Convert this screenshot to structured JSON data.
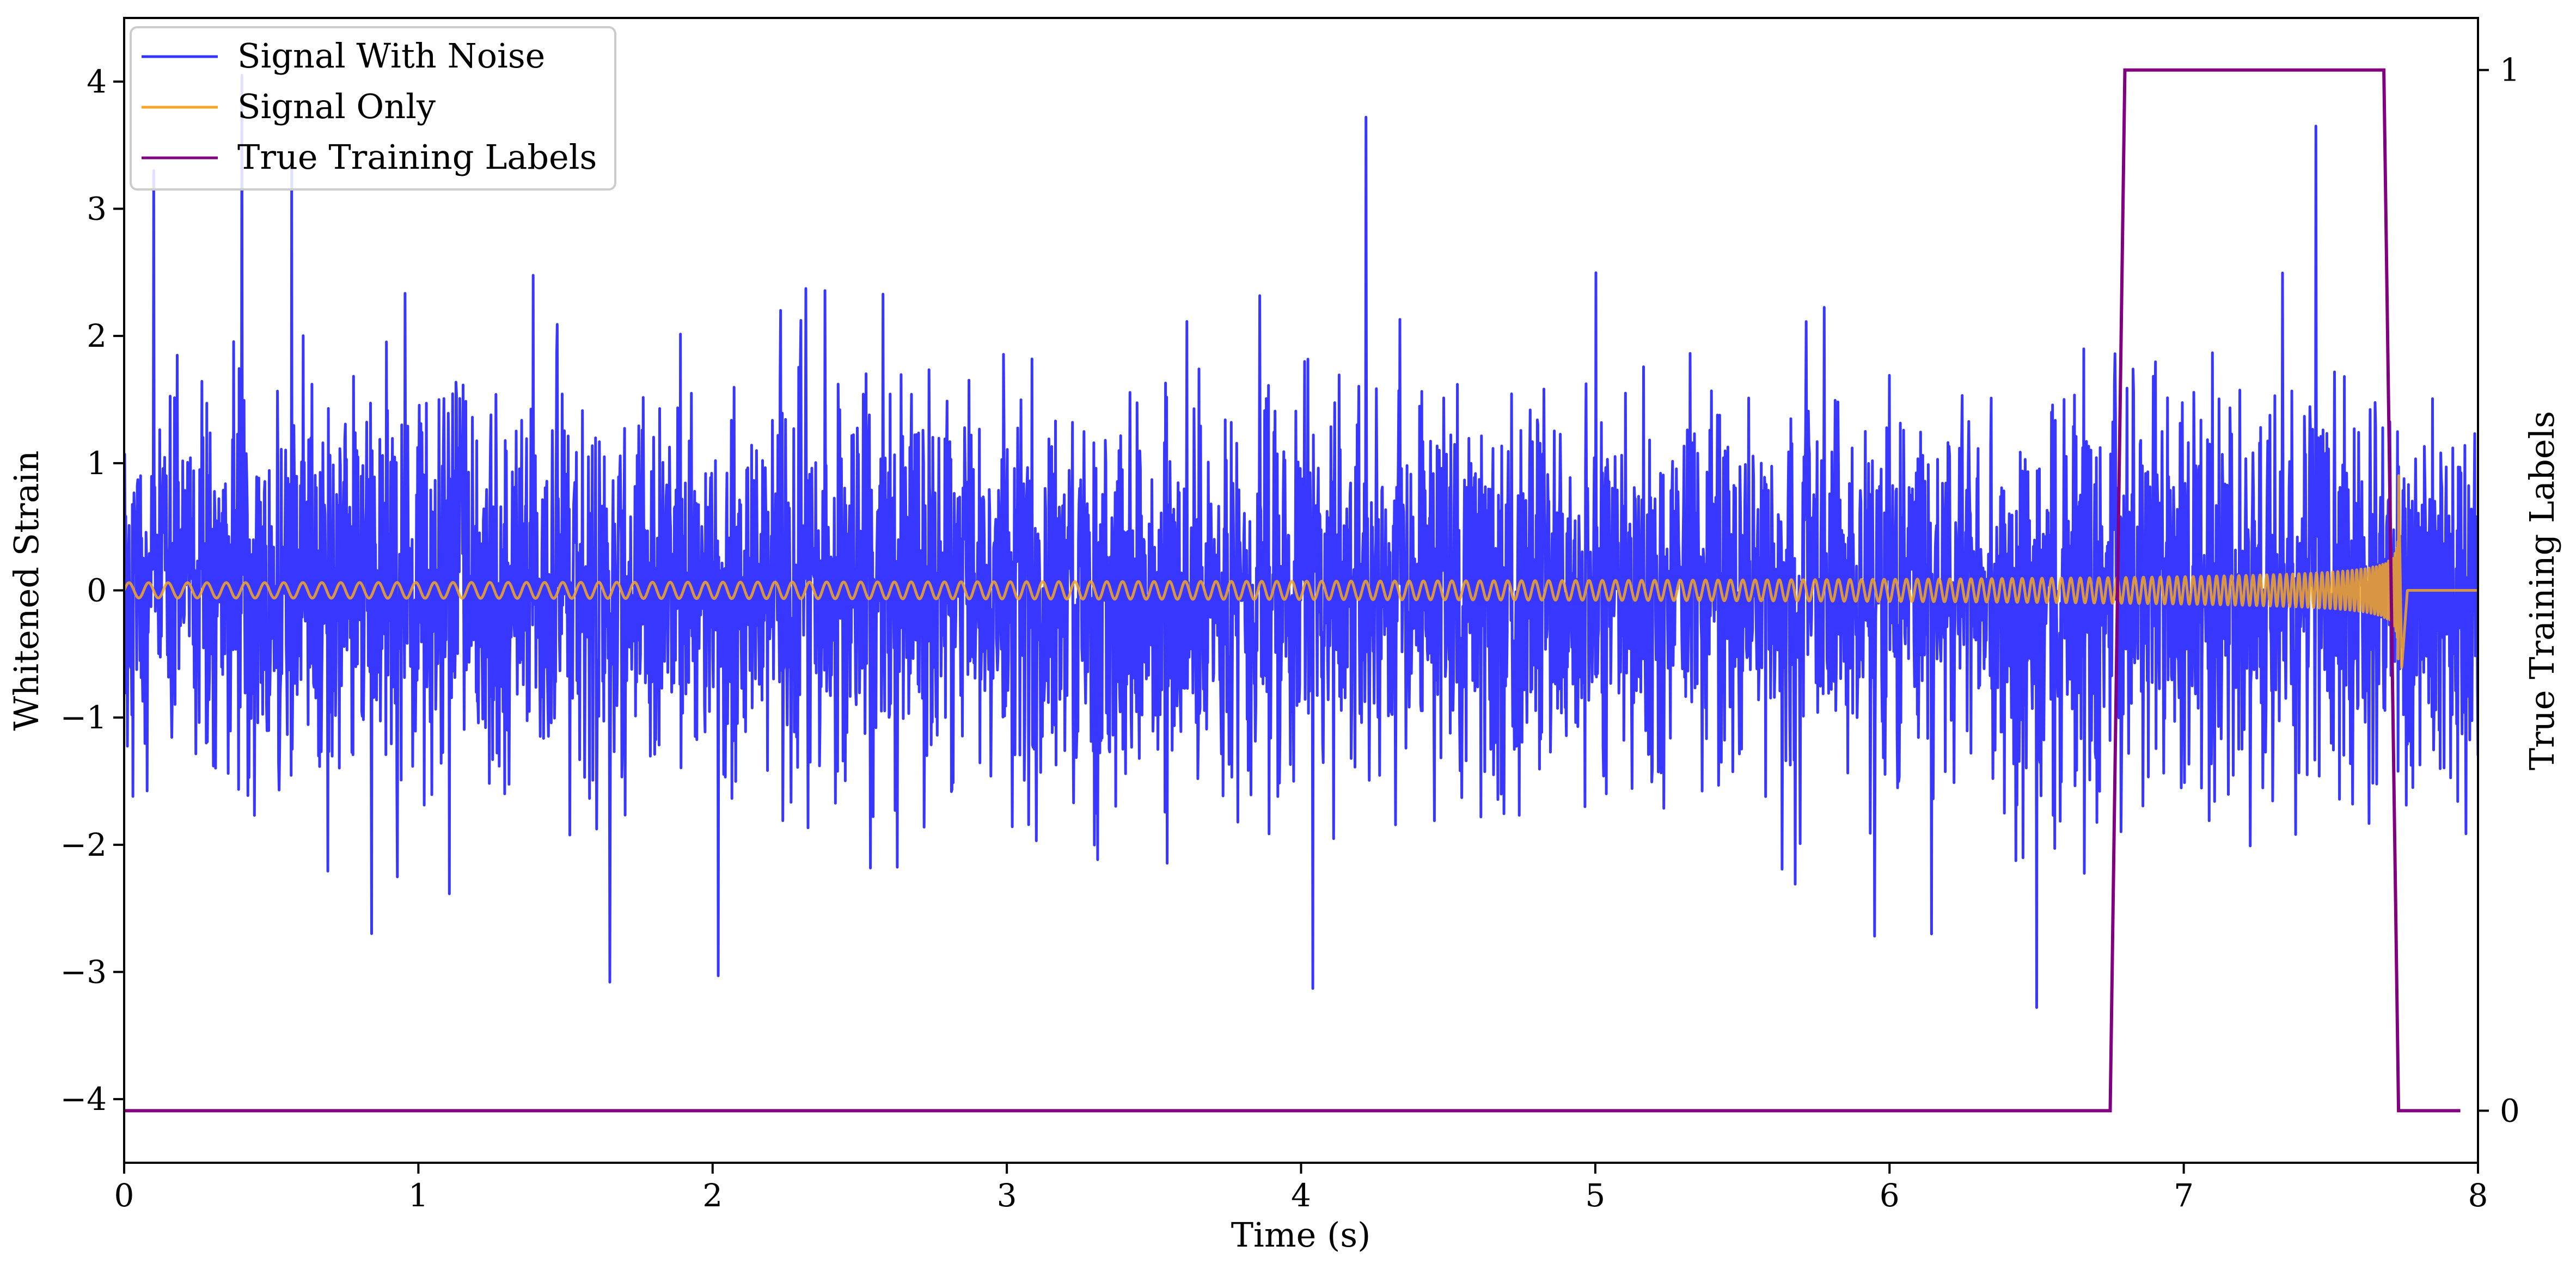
{
  "chart_data": {
    "type": "line",
    "xlabel": "Time (s)",
    "ylabel": "Whitened Strain",
    "y2label": "True Training Labels",
    "xlim": [
      0,
      8
    ],
    "ylim": [
      -4.5,
      4.5
    ],
    "y2lim": [
      -0.05,
      1.05
    ],
    "xticks": [
      0,
      1,
      2,
      3,
      4,
      5,
      6,
      7,
      8
    ],
    "xtick_labels": [
      "0",
      "1",
      "2",
      "3",
      "4",
      "5",
      "6",
      "7",
      "8"
    ],
    "yticks": [
      -4,
      -3,
      -2,
      -1,
      0,
      1,
      2,
      3,
      4
    ],
    "ytick_labels": [
      "−4",
      "−3",
      "−2",
      "−1",
      "0",
      "1",
      "2",
      "3",
      "4"
    ],
    "y2ticks": [
      0,
      1
    ],
    "y2tick_labels": [
      "0",
      "1"
    ],
    "grid": false,
    "legend_position": "top-left",
    "series": [
      {
        "name": "Signal With Noise",
        "color": "#3333ff",
        "axis": "left",
        "kind": "noise",
        "x_range": [
          0,
          8
        ],
        "approx_std": 0.75,
        "peaks": [
          [
            0.1,
            3.3
          ],
          [
            0.4,
            4.05
          ],
          [
            0.57,
            3.4
          ],
          [
            4.22,
            3.72
          ],
          [
            7.45,
            3.65
          ],
          [
            1.65,
            -3.08
          ],
          [
            2.02,
            -3.03
          ],
          [
            4.04,
            -3.13
          ],
          [
            6.5,
            -3.28
          ]
        ]
      },
      {
        "name": "Signal Only",
        "color": "#f5a623",
        "axis": "left",
        "kind": "chirp",
        "x_range": [
          0,
          8
        ],
        "amplitude_start": 0.06,
        "merger_time": 7.73,
        "peak_amplitude": 1.0,
        "min_amplitude": -0.62,
        "flat_after": 7.76
      },
      {
        "name": "True Training Labels",
        "color": "#800080",
        "axis": "right",
        "kind": "step",
        "x": [
          0,
          6.75,
          6.8,
          7.68,
          7.73,
          7.94
        ],
        "y": [
          0,
          0,
          1,
          1,
          0,
          0
        ]
      }
    ]
  }
}
